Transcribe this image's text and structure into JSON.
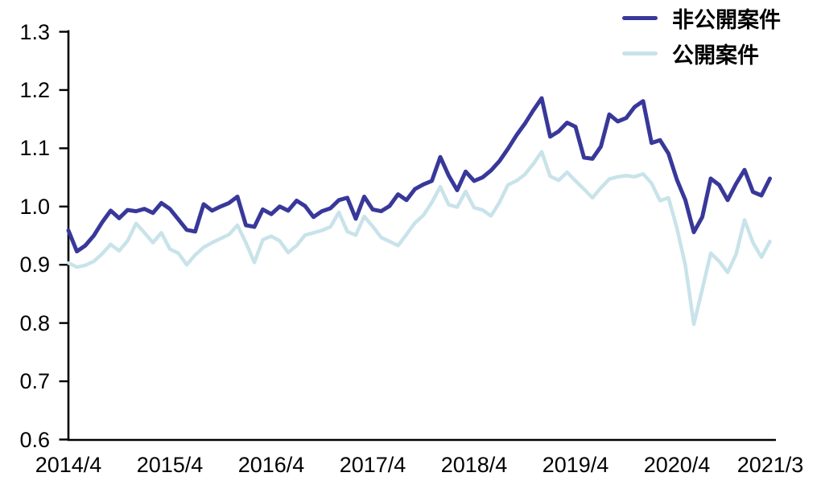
{
  "chart_data": {
    "type": "line",
    "title": "",
    "xlabel": "",
    "ylabel": "",
    "grid": false,
    "legend_position": "top-right",
    "axis_color": "#000000",
    "label_color": "#000000",
    "ylim": [
      0.6,
      1.3
    ],
    "y_ticks": [
      0.6,
      0.7,
      0.8,
      0.9,
      1.0,
      1.1,
      1.2,
      1.3
    ],
    "x_unit": "month",
    "x_start": "2014/4",
    "x_end": "2021/3",
    "x_tick_labels": [
      "2014/4",
      "2015/4",
      "2016/4",
      "2017/4",
      "2018/4",
      "2019/4",
      "2020/4",
      "2021/3"
    ],
    "x_tick_month_indices": [
      0,
      12,
      24,
      36,
      48,
      60,
      72,
      83
    ],
    "series": [
      {
        "name": "非公開案件",
        "color": "#38389A",
        "line_width": 5,
        "values": [
          0.959,
          0.923,
          0.933,
          0.95,
          0.973,
          0.993,
          0.98,
          0.994,
          0.992,
          0.996,
          0.989,
          1.006,
          0.996,
          0.978,
          0.96,
          0.957,
          1.004,
          0.993,
          1.0,
          1.006,
          1.017,
          0.968,
          0.965,
          0.995,
          0.987,
          1.0,
          0.993,
          1.01,
          1.001,
          0.982,
          0.992,
          0.997,
          1.011,
          1.015,
          0.979,
          1.017,
          0.995,
          0.992,
          1.001,
          1.021,
          1.011,
          1.03,
          1.038,
          1.044,
          1.085,
          1.053,
          1.028,
          1.06,
          1.044,
          1.05,
          1.062,
          1.078,
          1.099,
          1.122,
          1.142,
          1.165,
          1.186,
          1.12,
          1.129,
          1.144,
          1.137,
          1.084,
          1.082,
          1.103,
          1.158,
          1.146,
          1.152,
          1.171,
          1.181,
          1.109,
          1.114,
          1.091,
          1.046,
          1.011,
          0.956,
          0.982,
          1.048,
          1.037,
          1.011,
          1.039,
          1.063,
          1.025,
          1.019,
          1.048
        ]
      },
      {
        "name": "公開案件",
        "color": "#C8E3E9",
        "line_width": 4.5,
        "values": [
          0.903,
          0.896,
          0.899,
          0.906,
          0.919,
          0.935,
          0.924,
          0.941,
          0.971,
          0.955,
          0.938,
          0.955,
          0.927,
          0.92,
          0.9,
          0.917,
          0.93,
          0.938,
          0.945,
          0.952,
          0.968,
          0.938,
          0.904,
          0.943,
          0.949,
          0.941,
          0.921,
          0.933,
          0.951,
          0.955,
          0.959,
          0.965,
          0.99,
          0.957,
          0.951,
          0.983,
          0.966,
          0.947,
          0.94,
          0.933,
          0.952,
          0.972,
          0.985,
          1.007,
          1.034,
          1.003,
          0.999,
          1.026,
          0.998,
          0.994,
          0.984,
          1.007,
          1.037,
          1.044,
          1.055,
          1.073,
          1.094,
          1.052,
          1.045,
          1.059,
          1.044,
          1.03,
          1.015,
          1.032,
          1.047,
          1.051,
          1.053,
          1.051,
          1.056,
          1.04,
          1.01,
          1.015,
          0.963,
          0.899,
          0.798,
          0.858,
          0.92,
          0.906,
          0.887,
          0.918,
          0.977,
          0.938,
          0.913,
          0.94
        ]
      }
    ]
  }
}
